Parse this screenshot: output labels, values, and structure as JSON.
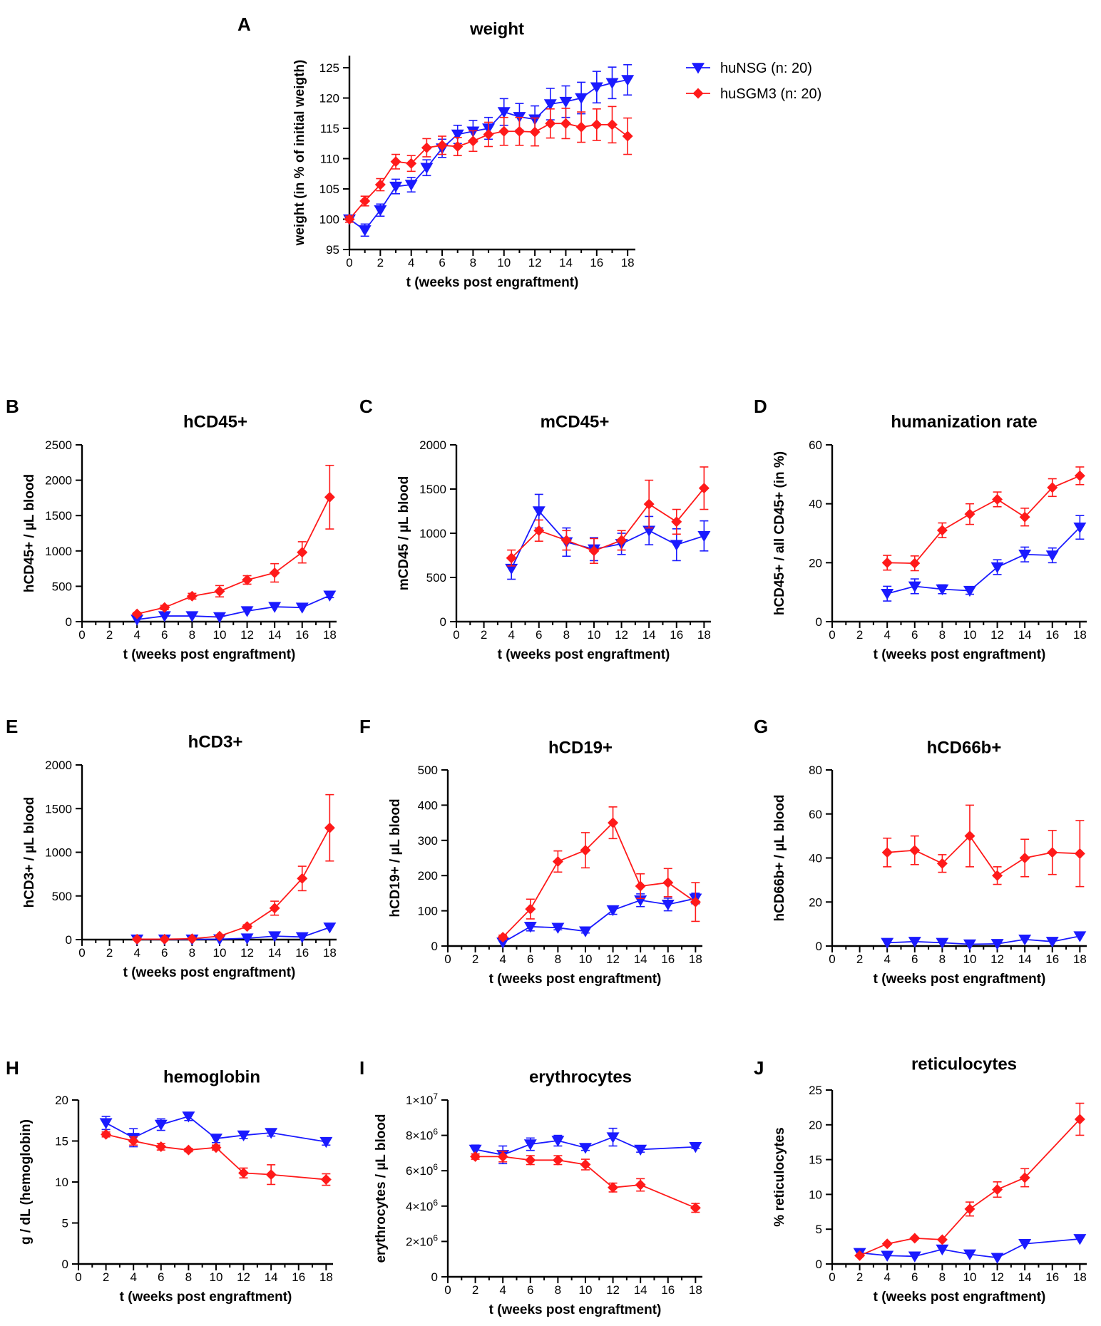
{
  "figure": {
    "colors": {
      "huNSG": "#1a1aff",
      "huSGM3": "#ff1a1a",
      "axis": "#000000"
    },
    "legend": [
      {
        "name": "huNSG  (n: 20)",
        "marker": "triangle-down",
        "color": "#1a1aff"
      },
      {
        "name": "huSGM3  (n: 20)",
        "marker": "diamond",
        "color": "#ff1a1a"
      }
    ]
  },
  "chart_data": [
    {
      "id": "A",
      "type": "line",
      "title": "weight",
      "xlabel": "t (weeks post engraftment)",
      "ylabel": "weight (in % of initial weigth)",
      "xlim": [
        0,
        18.5
      ],
      "ylim": [
        95,
        127
      ],
      "xticks": [
        0,
        2,
        4,
        6,
        8,
        10,
        12,
        14,
        16,
        18
      ],
      "xticks_minor": [
        1,
        3,
        5,
        7,
        9,
        11,
        13,
        15,
        17
      ],
      "yticks": [
        95,
        100,
        105,
        110,
        115,
        120,
        125
      ],
      "series": [
        {
          "name": "huNSG",
          "x": [
            0,
            1,
            2,
            3,
            4,
            5,
            6,
            7,
            8,
            9,
            10,
            11,
            12,
            13,
            14,
            15,
            16,
            17,
            18
          ],
          "y": [
            100,
            98.2,
            101.5,
            105.4,
            105.7,
            108.5,
            111.7,
            114,
            114.5,
            115,
            117.7,
            116.9,
            116.5,
            119,
            119.4,
            120,
            121.8,
            122.5,
            123
          ],
          "err": [
            0.5,
            1,
            1,
            1.2,
            1.2,
            1.3,
            1.5,
            1.5,
            1.8,
            1.8,
            2.2,
            2.2,
            2.2,
            2.6,
            2.6,
            2.6,
            2.6,
            2.6,
            2.5
          ]
        },
        {
          "name": "huSGM3",
          "x": [
            0,
            1,
            2,
            3,
            4,
            5,
            6,
            7,
            8,
            9,
            10,
            11,
            12,
            13,
            14,
            15,
            16,
            17,
            18
          ],
          "y": [
            100,
            103,
            105.7,
            109.5,
            109.2,
            111.8,
            112.2,
            112,
            112.9,
            114,
            114.5,
            114.5,
            114.4,
            115.8,
            115.8,
            115.2,
            115.6,
            115.6,
            113.7
          ],
          "err": [
            0.5,
            0.8,
            1,
            1.2,
            1.3,
            1.5,
            1.5,
            1.5,
            1.7,
            2,
            2.3,
            2.3,
            2.3,
            2.4,
            2.5,
            2.5,
            2.6,
            3,
            3
          ]
        }
      ]
    },
    {
      "id": "B",
      "type": "line",
      "title": "hCD45+",
      "xlabel": "t (weeks post engraftment)",
      "ylabel": "hCD45+ / µL blood",
      "xlim": [
        0,
        18.5
      ],
      "ylim": [
        0,
        2500
      ],
      "xticks": [
        0,
        2,
        4,
        6,
        8,
        10,
        12,
        14,
        16,
        18
      ],
      "xticks_minor": [
        1,
        3,
        5,
        7,
        9,
        11,
        13,
        15,
        17
      ],
      "yticks": [
        0,
        500,
        1000,
        1500,
        2000,
        2500
      ],
      "series": [
        {
          "name": "huNSG",
          "x": [
            4,
            6,
            8,
            10,
            12,
            14,
            16,
            18
          ],
          "y": [
            30,
            80,
            80,
            65,
            150,
            210,
            200,
            370
          ],
          "err": [
            0,
            0,
            0,
            0,
            0,
            0,
            0,
            30
          ]
        },
        {
          "name": "huSGM3",
          "x": [
            4,
            6,
            8,
            10,
            12,
            14,
            16,
            18
          ],
          "y": [
            110,
            200,
            360,
            430,
            590,
            690,
            980,
            1760
          ],
          "err": [
            20,
            30,
            40,
            80,
            60,
            130,
            150,
            450
          ]
        }
      ]
    },
    {
      "id": "C",
      "type": "line",
      "title": "mCD45+",
      "xlabel": "t (weeks post engraftment)",
      "ylabel": "mCD45 / µL blood",
      "xlim": [
        0,
        18.5
      ],
      "ylim": [
        0,
        2000
      ],
      "xticks": [
        0,
        2,
        4,
        6,
        8,
        10,
        12,
        14,
        16,
        18
      ],
      "xticks_minor": [
        1,
        3,
        5,
        7,
        9,
        11,
        13,
        15,
        17
      ],
      "yticks": [
        0,
        500,
        1000,
        1500,
        2000
      ],
      "series": [
        {
          "name": "huNSG",
          "x": [
            4,
            6,
            8,
            10,
            12,
            14,
            16,
            18
          ],
          "y": [
            600,
            1250,
            900,
            820,
            880,
            1030,
            870,
            970
          ],
          "err": [
            120,
            190,
            160,
            130,
            120,
            160,
            180,
            170
          ]
        },
        {
          "name": "huSGM3",
          "x": [
            4,
            6,
            8,
            10,
            12,
            14,
            16,
            18
          ],
          "y": [
            720,
            1030,
            920,
            800,
            920,
            1330,
            1130,
            1510
          ],
          "err": [
            90,
            120,
            110,
            140,
            110,
            270,
            140,
            240
          ]
        }
      ]
    },
    {
      "id": "D",
      "type": "line",
      "title": "humanization rate",
      "xlabel": "t (weeks post engraftment)",
      "ylabel": "hCD45+ / all CD45+ (in %)",
      "xlim": [
        0,
        18.5
      ],
      "ylim": [
        0,
        60
      ],
      "xticks": [
        0,
        2,
        4,
        6,
        8,
        10,
        12,
        14,
        16,
        18
      ],
      "xticks_minor": [
        1,
        3,
        5,
        7,
        9,
        11,
        13,
        15,
        17
      ],
      "yticks": [
        0,
        20,
        40,
        60
      ],
      "series": [
        {
          "name": "huNSG",
          "x": [
            4,
            6,
            8,
            10,
            12,
            14,
            16,
            18
          ],
          "y": [
            9.5,
            12,
            11,
            10.5,
            18.5,
            22.8,
            22.5,
            32
          ],
          "err": [
            2.5,
            2.5,
            1.5,
            1.2,
            2.5,
            2.5,
            2.5,
            4
          ]
        },
        {
          "name": "huSGM3",
          "x": [
            4,
            6,
            8,
            10,
            12,
            14,
            16,
            18
          ],
          "y": [
            20,
            19.8,
            31,
            36.5,
            41.5,
            35.5,
            45.5,
            49.5
          ],
          "err": [
            2.5,
            2.5,
            2.5,
            3.5,
            2.5,
            3,
            3,
            3
          ]
        }
      ]
    },
    {
      "id": "E",
      "type": "line",
      "title": "hCD3+",
      "xlabel": "t (weeks post engraftment)",
      "ylabel": "hCD3+ / µL blood",
      "xlim": [
        0,
        18.5
      ],
      "ylim": [
        0,
        2000
      ],
      "xticks": [
        0,
        2,
        4,
        6,
        8,
        10,
        12,
        14,
        16,
        18
      ],
      "xticks_minor": [
        1,
        3,
        5,
        7,
        9,
        11,
        13,
        15,
        17
      ],
      "yticks": [
        0,
        500,
        1000,
        1500,
        2000
      ],
      "series": [
        {
          "name": "huNSG",
          "x": [
            4,
            6,
            8,
            10,
            12,
            14,
            16,
            18
          ],
          "y": [
            3,
            3,
            3,
            5,
            15,
            40,
            30,
            140
          ],
          "err": [
            0,
            0,
            0,
            0,
            0,
            0,
            0,
            0
          ]
        },
        {
          "name": "huSGM3",
          "x": [
            4,
            6,
            8,
            10,
            12,
            14,
            16,
            18
          ],
          "y": [
            5,
            5,
            10,
            40,
            150,
            360,
            700,
            1280
          ],
          "err": [
            0,
            0,
            0,
            10,
            20,
            80,
            140,
            380
          ]
        }
      ]
    },
    {
      "id": "F",
      "type": "line",
      "title": "hCD19+",
      "xlabel": "t (weeks post engraftment)",
      "ylabel": "hCD19+ / µL blood",
      "xlim": [
        0,
        18.5
      ],
      "ylim": [
        0,
        500
      ],
      "xticks": [
        0,
        2,
        4,
        6,
        8,
        10,
        12,
        14,
        16,
        18
      ],
      "xticks_minor": [
        1,
        3,
        5,
        7,
        9,
        11,
        13,
        15,
        17
      ],
      "yticks": [
        0,
        100,
        200,
        300,
        400,
        500
      ],
      "series": [
        {
          "name": "huNSG",
          "x": [
            4,
            6,
            8,
            10,
            12,
            14,
            16,
            18
          ],
          "y": [
            10,
            55,
            52,
            42,
            102,
            130,
            118,
            135
          ],
          "err": [
            0,
            12,
            6,
            5,
            12,
            18,
            18,
            15
          ]
        },
        {
          "name": "huSGM3",
          "x": [
            4,
            6,
            8,
            10,
            12,
            14,
            16,
            18
          ],
          "y": [
            25,
            105,
            240,
            272,
            350,
            170,
            180,
            125
          ],
          "err": [
            6,
            28,
            30,
            50,
            45,
            35,
            40,
            55
          ]
        }
      ]
    },
    {
      "id": "G",
      "type": "line",
      "title": "hCD66b+",
      "xlabel": "t (weeks post engraftment)",
      "ylabel": "hCD66b+ / µL blood",
      "xlim": [
        0,
        18.5
      ],
      "ylim": [
        0,
        80
      ],
      "xticks": [
        0,
        2,
        4,
        6,
        8,
        10,
        12,
        14,
        16,
        18
      ],
      "xticks_minor": [
        1,
        3,
        5,
        7,
        9,
        11,
        13,
        15,
        17
      ],
      "yticks": [
        0,
        20,
        40,
        60,
        80
      ],
      "series": [
        {
          "name": "huNSG",
          "x": [
            4,
            6,
            8,
            10,
            12,
            14,
            16,
            18
          ],
          "y": [
            1.5,
            2,
            1.5,
            0.8,
            1,
            3,
            2,
            4.5
          ],
          "err": [
            0,
            0,
            0,
            0,
            0,
            0,
            0,
            0
          ]
        },
        {
          "name": "huSGM3",
          "x": [
            4,
            6,
            8,
            10,
            12,
            14,
            16,
            18
          ],
          "y": [
            42.5,
            43.5,
            37.5,
            50,
            32,
            40,
            42.5,
            42
          ],
          "err": [
            6.5,
            6.5,
            4,
            14,
            4,
            8.5,
            10,
            15
          ]
        }
      ]
    },
    {
      "id": "H",
      "type": "line",
      "title": "hemoglobin",
      "xlabel": "t (weeks post engraftment)",
      "ylabel": "g / dL (hemoglobin)",
      "xlim": [
        0,
        18.5
      ],
      "ylim": [
        0,
        20
      ],
      "xticks": [
        0,
        2,
        4,
        6,
        8,
        10,
        12,
        14,
        16,
        18
      ],
      "xticks_minor": [
        1,
        3,
        5,
        7,
        9,
        11,
        13,
        15,
        17
      ],
      "yticks": [
        0,
        5,
        10,
        15,
        20
      ],
      "series": [
        {
          "name": "huNSG",
          "x": [
            2,
            4,
            6,
            8,
            10,
            12,
            14,
            18
          ],
          "y": [
            17.2,
            15.4,
            17,
            18,
            15.3,
            15.7,
            16,
            14.9
          ],
          "err": [
            0.8,
            1.1,
            0.7,
            0.5,
            0.5,
            0.4,
            0.4,
            0.4
          ]
        },
        {
          "name": "huSGM3",
          "x": [
            2,
            4,
            6,
            8,
            10,
            12,
            14,
            18
          ],
          "y": [
            15.8,
            15,
            14.3,
            13.9,
            14.2,
            11.1,
            10.9,
            10.3
          ],
          "err": [
            0.3,
            0.5,
            0.4,
            0.2,
            0.3,
            0.6,
            1.2,
            0.7
          ]
        }
      ]
    },
    {
      "id": "I",
      "type": "line",
      "title": "erythrocytes",
      "xlabel": "t (weeks post engraftment)",
      "ylabel": "erythrocytes / µL blood",
      "xlim": [
        0,
        18.5
      ],
      "ylim": [
        0,
        10000000
      ],
      "xticks": [
        0,
        2,
        4,
        6,
        8,
        10,
        12,
        14,
        16,
        18
      ],
      "xticks_minor": [
        1,
        3,
        5,
        7,
        9,
        11,
        13,
        15,
        17
      ],
      "yticks": [
        0,
        2000000,
        4000000,
        6000000,
        8000000,
        10000000
      ],
      "ytick_labels": [
        {
          "base": "0",
          "exp": ""
        },
        {
          "base": "2×10",
          "exp": "6"
        },
        {
          "base": "4×10",
          "exp": "6"
        },
        {
          "base": "6×10",
          "exp": "6"
        },
        {
          "base": "8×10",
          "exp": "6"
        },
        {
          "base": "1×10",
          "exp": "7"
        }
      ],
      "series": [
        {
          "name": "huNSG",
          "x": [
            2,
            4,
            6,
            8,
            10,
            12,
            14,
            18
          ],
          "y": [
            7200000,
            6900000,
            7500000,
            7700000,
            7300000,
            7900000,
            7200000,
            7350000
          ],
          "err": [
            250000,
            500000,
            350000,
            300000,
            150000,
            500000,
            150000,
            100000
          ]
        },
        {
          "name": "huSGM3",
          "x": [
            2,
            4,
            6,
            8,
            10,
            12,
            14,
            18
          ],
          "y": [
            6800000,
            6800000,
            6600000,
            6600000,
            6350000,
            5050000,
            5200000,
            3900000
          ],
          "err": [
            150000,
            300000,
            250000,
            250000,
            300000,
            250000,
            350000,
            250000
          ]
        }
      ]
    },
    {
      "id": "J",
      "type": "line",
      "title": "reticulocytes",
      "xlabel": "t (weeks post engraftment)",
      "ylabel": "% reticulocytes",
      "xlim": [
        0,
        18.5
      ],
      "ylim": [
        0,
        25
      ],
      "xticks": [
        0,
        2,
        4,
        6,
        8,
        10,
        12,
        14,
        16,
        18
      ],
      "xticks_minor": [
        1,
        3,
        5,
        7,
        9,
        11,
        13,
        15,
        17
      ],
      "yticks": [
        0,
        5,
        10,
        15,
        20,
        25
      ],
      "series": [
        {
          "name": "huNSG",
          "x": [
            2,
            4,
            6,
            8,
            10,
            12,
            14,
            18
          ],
          "y": [
            1.6,
            1.2,
            1.1,
            2.1,
            1.4,
            0.9,
            2.9,
            3.6
          ],
          "err": [
            0,
            0,
            0,
            0,
            0,
            0,
            0,
            0
          ]
        },
        {
          "name": "huSGM3",
          "x": [
            2,
            4,
            6,
            8,
            10,
            12,
            14,
            18
          ],
          "y": [
            1.2,
            2.9,
            3.7,
            3.5,
            7.9,
            10.7,
            12.4,
            20.8
          ],
          "err": [
            0,
            0,
            0,
            0,
            1,
            1.1,
            1.3,
            2.3
          ]
        }
      ]
    }
  ]
}
